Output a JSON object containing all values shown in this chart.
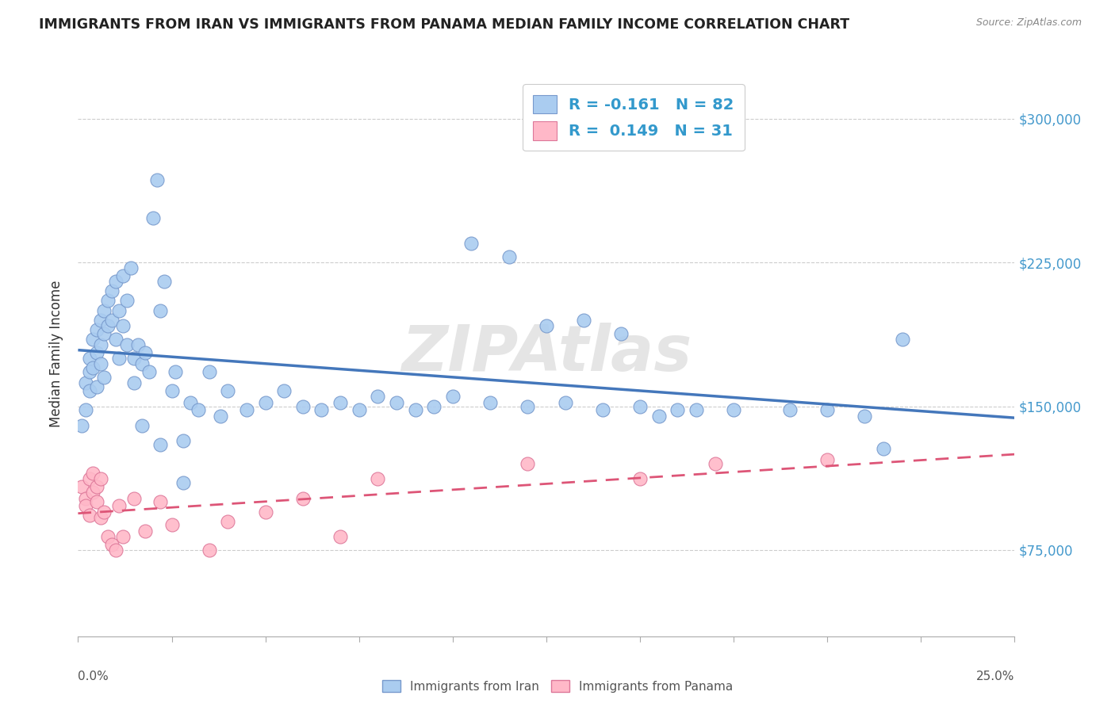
{
  "title": "IMMIGRANTS FROM IRAN VS IMMIGRANTS FROM PANAMA MEDIAN FAMILY INCOME CORRELATION CHART",
  "source": "Source: ZipAtlas.com",
  "ylabel": "Median Family Income",
  "yticks": [
    75000,
    150000,
    225000,
    300000
  ],
  "ytick_labels": [
    "$75,000",
    "$150,000",
    "$225,000",
    "$300,000"
  ],
  "xlim": [
    0.0,
    0.25
  ],
  "ylim": [
    30000,
    325000
  ],
  "iran_color": "#aaccf0",
  "iran_edge_color": "#7799cc",
  "panama_color": "#ffb8c8",
  "panama_edge_color": "#dd7799",
  "iran_line_color": "#4477bb",
  "panama_line_color": "#dd5577",
  "iran_R": -0.161,
  "iran_N": 82,
  "panama_R": 0.149,
  "panama_N": 31,
  "watermark": "ZIPAtlas",
  "iran_scatter_x": [
    0.001,
    0.002,
    0.002,
    0.003,
    0.003,
    0.003,
    0.004,
    0.004,
    0.005,
    0.005,
    0.005,
    0.006,
    0.006,
    0.006,
    0.007,
    0.007,
    0.007,
    0.008,
    0.008,
    0.009,
    0.009,
    0.01,
    0.01,
    0.011,
    0.011,
    0.012,
    0.012,
    0.013,
    0.013,
    0.014,
    0.015,
    0.015,
    0.016,
    0.017,
    0.018,
    0.019,
    0.02,
    0.021,
    0.022,
    0.023,
    0.025,
    0.026,
    0.028,
    0.03,
    0.032,
    0.035,
    0.038,
    0.04,
    0.045,
    0.05,
    0.055,
    0.06,
    0.065,
    0.07,
    0.075,
    0.08,
    0.085,
    0.09,
    0.095,
    0.1,
    0.11,
    0.12,
    0.13,
    0.14,
    0.15,
    0.16,
    0.175,
    0.19,
    0.2,
    0.21,
    0.105,
    0.115,
    0.125,
    0.135,
    0.145,
    0.165,
    0.155,
    0.017,
    0.022,
    0.028,
    0.22,
    0.215
  ],
  "iran_scatter_y": [
    140000,
    162000,
    148000,
    175000,
    158000,
    168000,
    185000,
    170000,
    190000,
    178000,
    160000,
    195000,
    182000,
    172000,
    200000,
    188000,
    165000,
    205000,
    192000,
    210000,
    195000,
    215000,
    185000,
    200000,
    175000,
    218000,
    192000,
    205000,
    182000,
    222000,
    175000,
    162000,
    182000,
    172000,
    178000,
    168000,
    248000,
    268000,
    200000,
    215000,
    158000,
    168000,
    132000,
    152000,
    148000,
    168000,
    145000,
    158000,
    148000,
    152000,
    158000,
    150000,
    148000,
    152000,
    148000,
    155000,
    152000,
    148000,
    150000,
    155000,
    152000,
    150000,
    152000,
    148000,
    150000,
    148000,
    148000,
    148000,
    148000,
    145000,
    235000,
    228000,
    192000,
    195000,
    188000,
    148000,
    145000,
    140000,
    130000,
    110000,
    185000,
    128000
  ],
  "panama_scatter_x": [
    0.001,
    0.002,
    0.002,
    0.003,
    0.003,
    0.004,
    0.004,
    0.005,
    0.005,
    0.006,
    0.006,
    0.007,
    0.008,
    0.009,
    0.01,
    0.011,
    0.012,
    0.015,
    0.018,
    0.022,
    0.025,
    0.035,
    0.04,
    0.05,
    0.06,
    0.07,
    0.08,
    0.12,
    0.15,
    0.17,
    0.2
  ],
  "panama_scatter_y": [
    108000,
    102000,
    98000,
    112000,
    93000,
    105000,
    115000,
    100000,
    108000,
    112000,
    92000,
    95000,
    82000,
    78000,
    75000,
    98000,
    82000,
    102000,
    85000,
    100000,
    88000,
    75000,
    90000,
    95000,
    102000,
    82000,
    112000,
    120000,
    112000,
    120000,
    122000
  ]
}
